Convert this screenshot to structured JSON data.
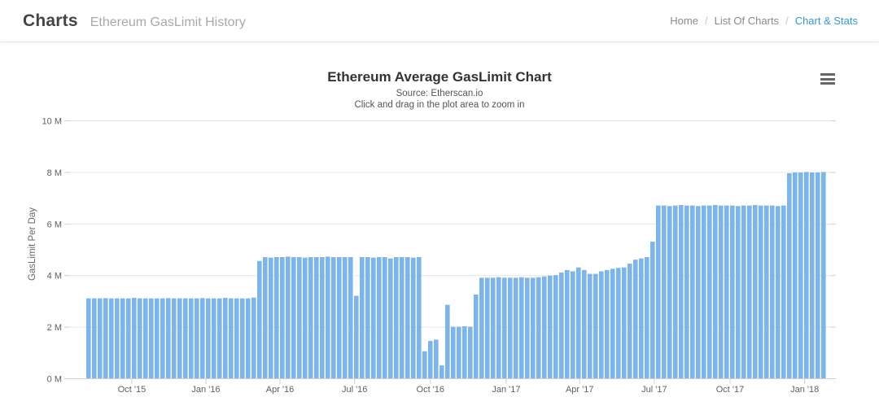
{
  "header": {
    "title": "Charts",
    "subtitle": "Ethereum GasLimit History",
    "breadcrumb": {
      "separator": "/",
      "items": [
        "Home",
        "List Of Charts",
        "Chart & Stats"
      ],
      "active_index": 2
    }
  },
  "chart": {
    "title": "Ethereum Average GasLimit Chart",
    "subtitle_line1": "Source: Etherscan.io",
    "subtitle_line2": "Click and drag in the plot area to zoom in",
    "y_axis_title": "GasLimit Per Day",
    "context_menu_icon": "hamburger-icon"
  },
  "colors": {
    "bar": "#7cb5ec",
    "gridline": "#e6e6e6",
    "axis_line": "#d0d0d0",
    "tick_label": "#606060",
    "breadcrumb_active": "#3398dc"
  },
  "chart_data": {
    "type": "bar",
    "title": "Ethereum Average GasLimit Chart",
    "subtitle": "Source: Etherscan.io / Click and drag in the plot area to zoom in",
    "xlabel": "",
    "ylabel": "GasLimit Per Day",
    "y_unit": "millions of gas",
    "ylim": [
      0,
      10
    ],
    "grid": true,
    "legend": false,
    "x_description": "weekly average bars, Aug 2015 through Jan 2018",
    "yticks": [
      {
        "value": 10,
        "label": "10 M"
      },
      {
        "value": 8,
        "label": "8 M"
      },
      {
        "value": 6,
        "label": "6 M"
      },
      {
        "value": 4,
        "label": "4 M"
      },
      {
        "value": 2,
        "label": "2 M"
      },
      {
        "value": 0,
        "label": "0 M"
      }
    ],
    "xticks": [
      {
        "label": "Oct '15",
        "week": 8
      },
      {
        "label": "Jan '16",
        "week": 21
      },
      {
        "label": "Apr '16",
        "week": 34
      },
      {
        "label": "Jul '16",
        "week": 47.1
      },
      {
        "label": "Oct '16",
        "week": 60.4
      },
      {
        "label": "Jan '17",
        "week": 73.7
      },
      {
        "label": "Apr '17",
        "week": 86.6
      },
      {
        "label": "Jul '17",
        "week": 99.7
      },
      {
        "label": "Oct '17",
        "week": 113
      },
      {
        "label": "Jan '18",
        "week": 126.1
      }
    ],
    "values_unit": "M",
    "values": [
      3.1,
      3.1,
      3.1,
      3.11,
      3.1,
      3.1,
      3.1,
      3.1,
      3.12,
      3.1,
      3.1,
      3.1,
      3.1,
      3.1,
      3.11,
      3.1,
      3.1,
      3.1,
      3.1,
      3.1,
      3.11,
      3.1,
      3.1,
      3.1,
      3.12,
      3.1,
      3.1,
      3.1,
      3.1,
      3.13,
      4.55,
      4.7,
      4.68,
      4.7,
      4.7,
      4.72,
      4.7,
      4.7,
      4.68,
      4.7,
      4.7,
      4.7,
      4.72,
      4.7,
      4.7,
      4.7,
      4.7,
      3.2,
      4.7,
      4.7,
      4.68,
      4.7,
      4.7,
      4.65,
      4.7,
      4.7,
      4.7,
      4.68,
      4.7,
      1.05,
      1.45,
      1.5,
      0.5,
      2.85,
      2.0,
      2.0,
      2.02,
      2.0,
      3.25,
      3.9,
      3.9,
      3.9,
      3.92,
      3.9,
      3.9,
      3.9,
      3.92,
      3.9,
      3.9,
      3.92,
      3.95,
      3.98,
      4.0,
      4.1,
      4.2,
      4.15,
      4.3,
      4.2,
      4.05,
      4.05,
      4.15,
      4.2,
      4.25,
      4.28,
      4.3,
      4.45,
      4.6,
      4.65,
      4.7,
      5.3,
      6.7,
      6.7,
      6.68,
      6.7,
      6.72,
      6.7,
      6.7,
      6.68,
      6.7,
      6.7,
      6.72,
      6.7,
      6.7,
      6.7,
      6.68,
      6.7,
      6.7,
      6.72,
      6.7,
      6.7,
      6.7,
      6.68,
      6.7,
      7.95,
      7.98,
      7.98,
      8.0,
      7.98,
      7.98,
      8.0
    ]
  }
}
